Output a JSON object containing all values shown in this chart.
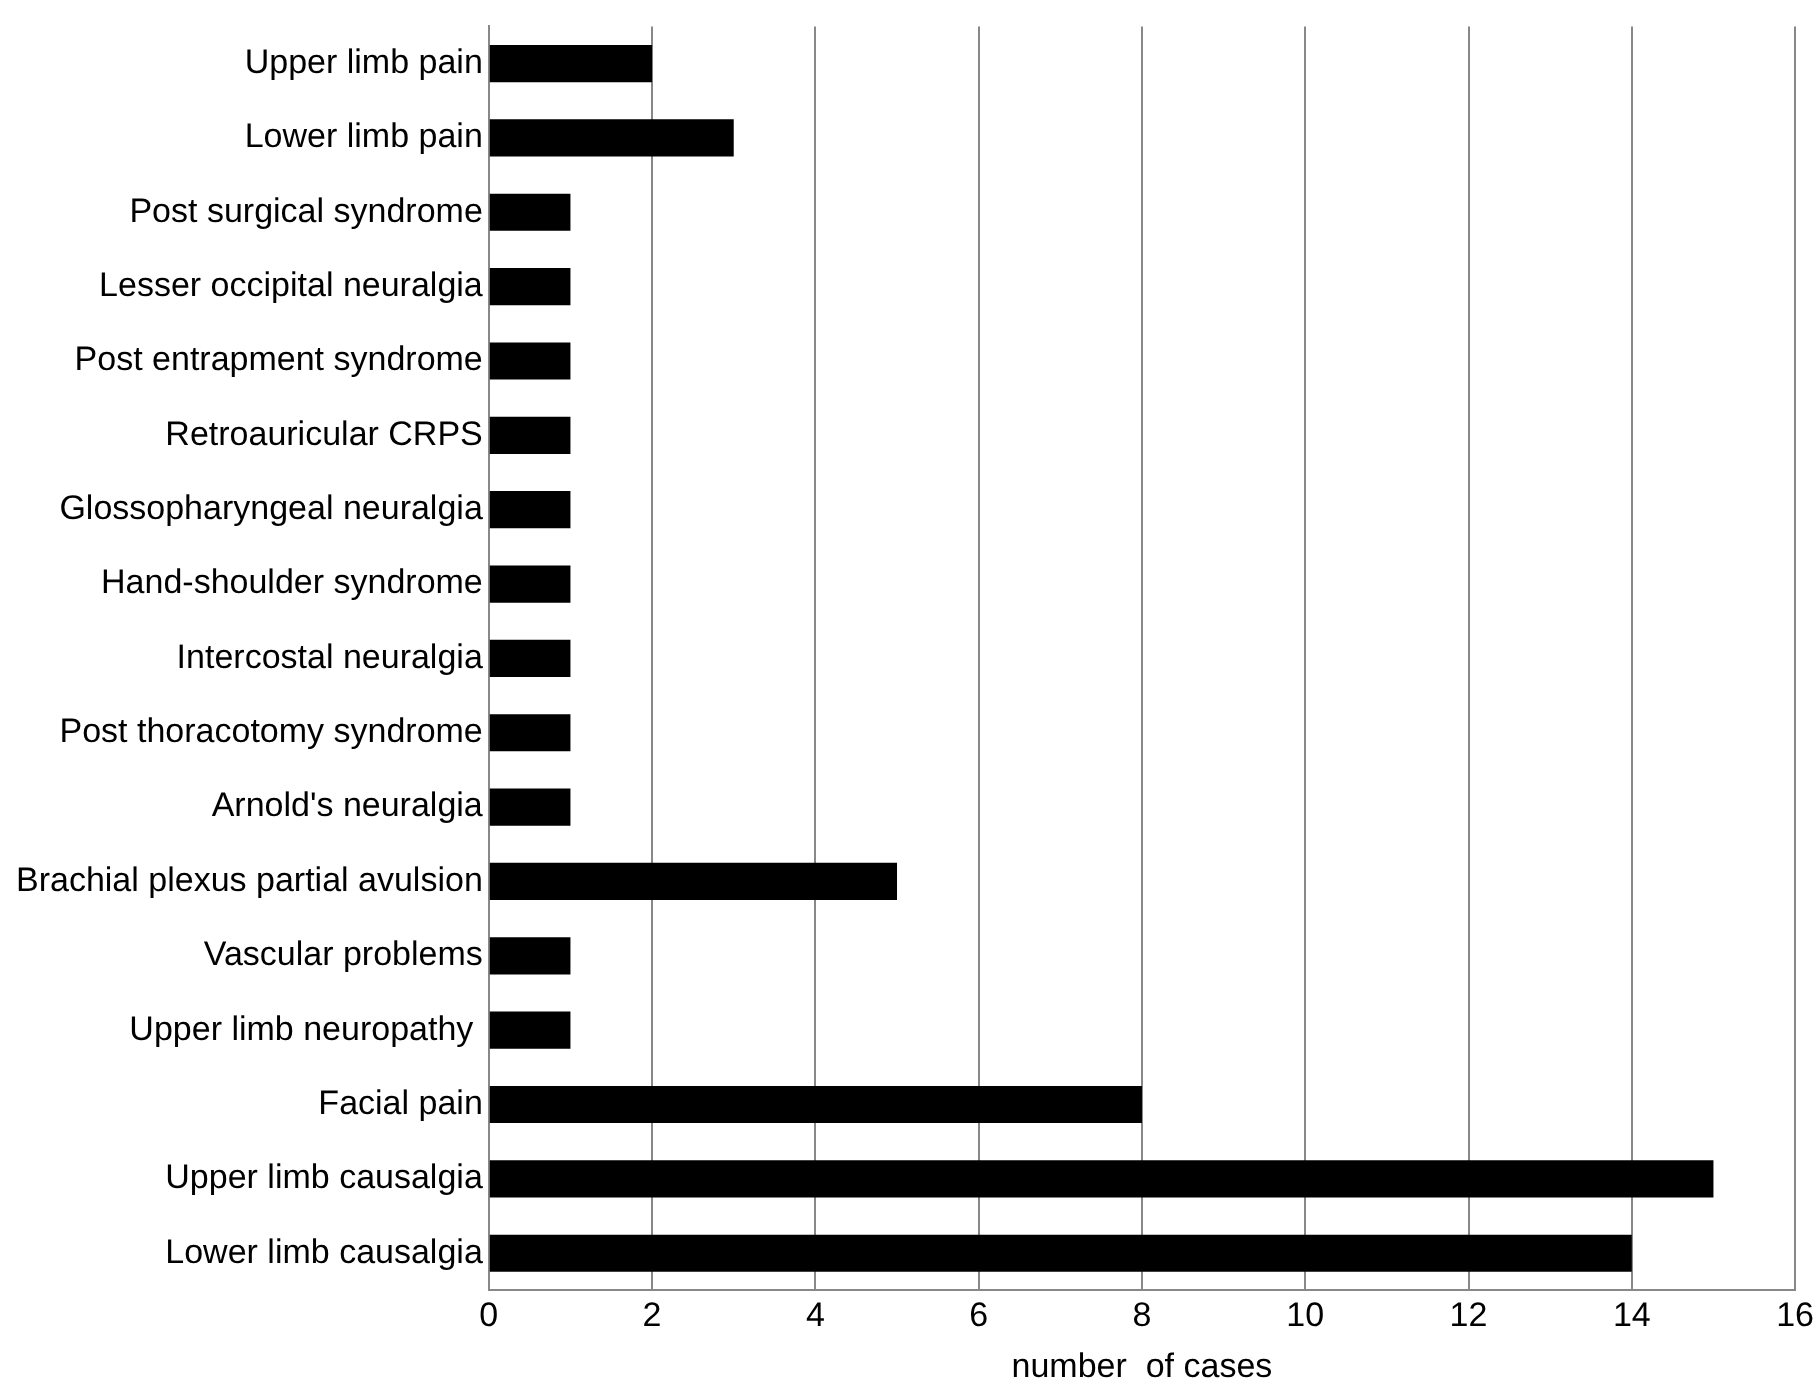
{
  "chart_data": {
    "type": "bar",
    "orientation": "horizontal",
    "xlabel": "number  of cases",
    "categories": [
      "Upper limb pain",
      "Lower limb pain",
      "Post surgical syndrome",
      "Lesser occipital neuralgia",
      "Post entrapment syndrome",
      "Retroauricular CRPS",
      "Glossopharyngeal neuralgia",
      "Hand-shoulder syndrome",
      "Intercostal neuralgia",
      "Post thoracotomy syndrome",
      "Arnold's neuralgia",
      "Brachial plexus partial avulsion",
      "Vascular problems",
      "Upper limb neuropathy ",
      "Facial pain",
      "Upper limb causalgia",
      "Lower limb causalgia"
    ],
    "values": [
      2,
      3,
      1,
      1,
      1,
      1,
      1,
      1,
      1,
      1,
      1,
      5,
      1,
      1,
      8,
      15,
      14
    ],
    "color": "#000000",
    "xlim": [
      0,
      16
    ],
    "xticks": [
      0,
      2,
      4,
      6,
      8,
      10,
      12,
      14,
      16
    ],
    "grid": "x",
    "legend": false
  }
}
